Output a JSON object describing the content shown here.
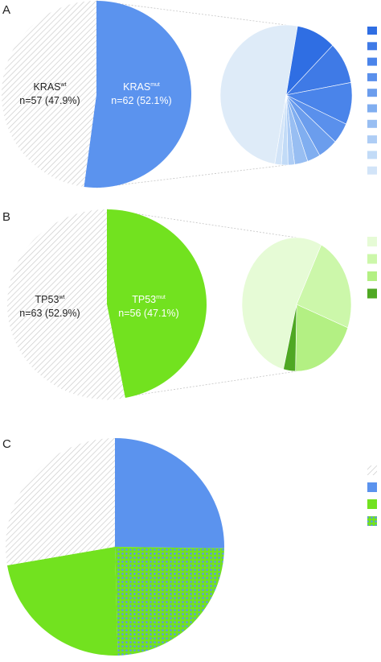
{
  "chart_data": [
    {
      "panel": "A",
      "type": "pie",
      "main": {
        "slices": [
          {
            "name": "KRAS",
            "superscript": "wt",
            "n_text": "n=57 (47.9%)",
            "value": 57,
            "color": "#ffffff",
            "pattern": "hatch"
          },
          {
            "name": "KRAS",
            "superscript": "mut",
            "n_text": "n=62 (52.1%)",
            "value": 62,
            "color": "#5b93ee",
            "pattern": "solid"
          }
        ]
      },
      "breakdown": {
        "type": "pie",
        "values": [
          31,
          6,
          6,
          6,
          3,
          3,
          2,
          2,
          1,
          1,
          1
        ],
        "colors": [
          "#deebf8",
          "#2f6ee3",
          "#3f7ae6",
          "#4a84ea",
          "#5a90ec",
          "#6b9ded",
          "#80aef0",
          "#98bef2",
          "#aecdf5",
          "#c2dbf7",
          "#d2e4f8"
        ]
      },
      "legend_swatches": [
        "#2f6ee3",
        "#3f7ae6",
        "#4a84ea",
        "#5a90ec",
        "#6b9ded",
        "#80aef0",
        "#98bef2",
        "#aecdf5",
        "#c2dbf7",
        "#d2e4f8"
      ]
    },
    {
      "panel": "B",
      "type": "pie",
      "main": {
        "slices": [
          {
            "name": "TP53",
            "superscript": "wt",
            "n_text": "n=63 (52.9%)",
            "value": 63,
            "color": "#ffffff",
            "pattern": "hatch"
          },
          {
            "name": "TP53",
            "superscript": "mut",
            "n_text": "n=56 (47.1%)",
            "value": 56,
            "color": "#72e21f",
            "pattern": "solid"
          }
        ]
      },
      "breakdown": {
        "type": "pie",
        "values": [
          30,
          13,
          11,
          2
        ],
        "colors": [
          "#e6fbd6",
          "#ccf7aa",
          "#b3f083",
          "#4fa823"
        ]
      },
      "legend_swatches": [
        "#e6fbd6",
        "#ccf7aa",
        "#b3f083",
        "#4fa823"
      ]
    },
    {
      "panel": "C",
      "type": "pie",
      "main": {
        "slices": [
          {
            "value": 30,
            "color": "#5b93ee",
            "pattern": "solid"
          },
          {
            "value": 29,
            "color": "#72e21f",
            "pattern": "dots"
          },
          {
            "value": 27,
            "color": "#72e21f",
            "pattern": "solid"
          },
          {
            "value": 33,
            "color": "#ffffff",
            "pattern": "hatch"
          }
        ]
      },
      "legend_swatches": [
        {
          "color": "#f2f2f2",
          "pattern": "hatch"
        },
        {
          "color": "#5b93ee",
          "pattern": "solid"
        },
        {
          "color": "#72e21f",
          "pattern": "solid"
        },
        {
          "color": "#72e21f",
          "pattern": "dots"
        }
      ]
    }
  ],
  "colors": {
    "kras_mut": "#5b93ee",
    "tp53_mut": "#72e21f",
    "hatch_line": "#c9c9c9",
    "connector": "#c4c4c4"
  }
}
